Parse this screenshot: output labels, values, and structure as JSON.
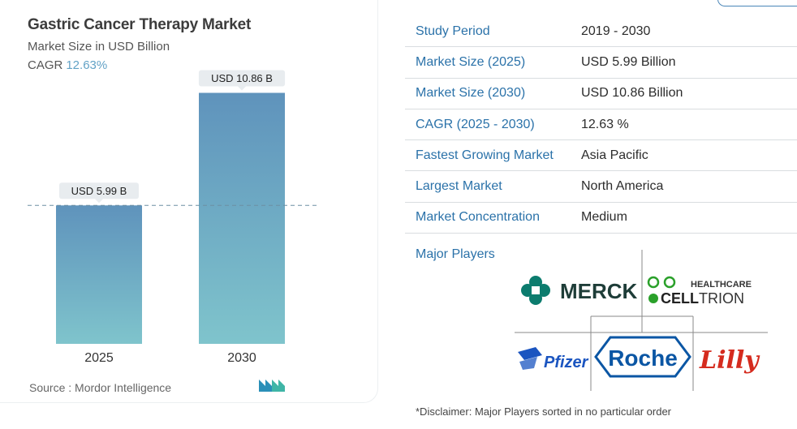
{
  "chart": {
    "title": "Gastric Cancer Therapy Market",
    "subtitle": "Market Size in USD Billion",
    "cagr_label": "CAGR",
    "cagr_value": "12.63%",
    "source": "Source :  Mordor Intelligence",
    "source_logo": "mordor-intelligence-logo"
  },
  "chart_data": {
    "type": "bar",
    "categories": [
      "2025",
      "2030"
    ],
    "values": [
      5.99,
      10.86
    ],
    "data_labels": [
      "USD 5.99 B",
      "USD 10.86 B"
    ],
    "title": "Gastric Cancer Therapy Market",
    "subtitle": "Market Size in USD Billion",
    "xlabel": "",
    "ylabel": "",
    "ylim": [
      0,
      12
    ],
    "grid": false,
    "colors": {
      "bar_top": "#5f93bc",
      "bar_bottom": "#7fc4cc",
      "reference_line": "#6d8fa3"
    }
  },
  "info": {
    "rows": [
      {
        "key": "Study Period",
        "value": "2019 - 2030"
      },
      {
        "key": "Market Size (2025)",
        "value": "USD 5.99 Billion"
      },
      {
        "key": "Market Size (2030)",
        "value": "USD 10.86 Billion"
      },
      {
        "key": "CAGR (2025 - 2030)",
        "value": "12.63 %"
      },
      {
        "key": "Fastest Growing Market",
        "value": "Asia Pacific"
      },
      {
        "key": "Largest Market",
        "value": "North America"
      },
      {
        "key": "Market Concentration",
        "value": "Medium"
      }
    ],
    "players_label": "Major Players",
    "players": {
      "merck": "MERCK",
      "celltrion_top": "HEALTHCARE",
      "celltrion_cell": "CELL",
      "celltrion_trion": "TRION",
      "pfizer": "Pfizer",
      "roche": "Roche",
      "lilly": "Lilly"
    },
    "disclaimer": "*Disclaimer: Major Players sorted in no particular order"
  },
  "colors": {
    "accent": "#2b72a9",
    "merck": "#0c7c6e",
    "celltrion": "#2aa02a",
    "pfizer": "#1b55c0",
    "roche": "#0b56a4",
    "lilly": "#d52b1e"
  }
}
